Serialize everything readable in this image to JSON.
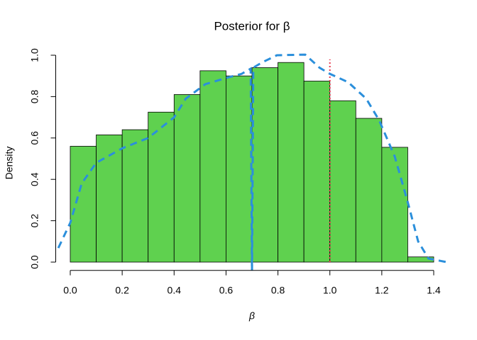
{
  "chart_data": {
    "type": "histogram",
    "title": "Posterior for β",
    "x_label": "β",
    "y_label": "Density",
    "bins": [
      0,
      0.1,
      0.2,
      0.3,
      0.4,
      0.5,
      0.6,
      0.7,
      0.8,
      0.9,
      1.0,
      1.1,
      1.2,
      1.3,
      1.4
    ],
    "values": [
      0.56,
      0.615,
      0.64,
      0.725,
      0.81,
      0.925,
      0.9,
      0.94,
      0.965,
      0.875,
      0.78,
      0.695,
      0.555,
      0.025
    ],
    "color": "#5fd14f",
    "density": {
      "color": "#2b8fdb",
      "x": [
        -0.046,
        0,
        0.044,
        0.1,
        0.2,
        0.3,
        0.4,
        0.445,
        0.52,
        0.6,
        0.66,
        0.695,
        0.7,
        0.705,
        0.74,
        0.796,
        0.905,
        0.96,
        1.0,
        1.07,
        1.14,
        1.19,
        1.25,
        1.3,
        1.34,
        1.38,
        1.45
      ],
      "y": [
        0.068,
        0.19,
        0.38,
        0.48,
        0.55,
        0.6,
        0.7,
        0.79,
        0.86,
        0.89,
        0.91,
        0.935,
        -0.045,
        0.94,
        0.966,
        1.0,
        1.003,
        0.94,
        0.91,
        0.87,
        0.79,
        0.685,
        0.51,
        0.29,
        0.1,
        0.017,
        0
      ]
    },
    "vline": {
      "value": 1.0,
      "color": "#e8394d"
    },
    "xlim": [
      -0.056,
      1.456
    ],
    "ylim": [
      -0.04,
      1.04
    ],
    "xticks": [
      {
        "value": 0,
        "label": "0.0"
      },
      {
        "value": 0.2,
        "label": "0.2"
      },
      {
        "value": 0.4,
        "label": "0.4"
      },
      {
        "value": 0.6,
        "label": "0.6"
      },
      {
        "value": 0.8,
        "label": "0.8"
      },
      {
        "value": 1.0,
        "label": "1.0"
      },
      {
        "value": 1.2,
        "label": "1.2"
      },
      {
        "value": 1.4,
        "label": "1.4"
      }
    ],
    "yticks": [
      {
        "value": 0,
        "label": "0.0"
      },
      {
        "value": 0.2,
        "label": "0.2"
      },
      {
        "value": 0.4,
        "label": "0.4"
      },
      {
        "value": 0.6,
        "label": "0.6"
      },
      {
        "value": 0.8,
        "label": "0.8"
      },
      {
        "value": 1.0,
        "label": "1.0"
      }
    ]
  }
}
